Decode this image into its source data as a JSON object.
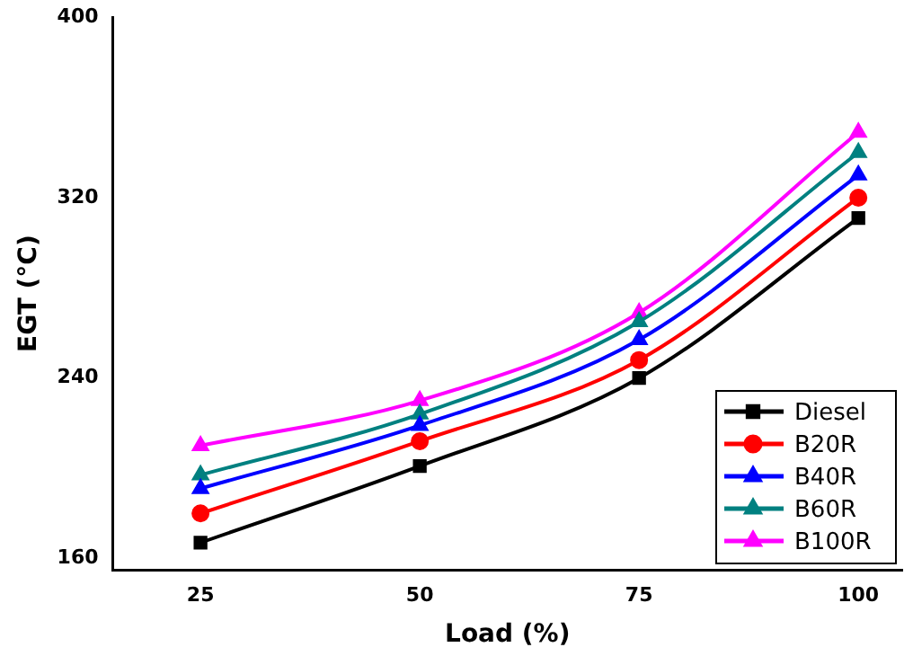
{
  "chart_data": {
    "type": "line",
    "xlabel": "Load (%)",
    "ylabel": "EGT (°C)",
    "x": [
      25,
      50,
      75,
      100
    ],
    "xlim": [
      15,
      105
    ],
    "xticks": [
      25,
      50,
      75,
      100
    ],
    "ylim": [
      155,
      400
    ],
    "yticks": [
      160,
      240,
      320,
      400
    ],
    "grid": false,
    "legend": "bottom right",
    "line_style": "solid",
    "series": [
      {
        "name": "Diesel",
        "color": "#000000",
        "marker": "square",
        "values": [
          167,
          201,
          240,
          311
        ]
      },
      {
        "name": "B20R",
        "color": "#ff0000",
        "marker": "circle",
        "values": [
          180,
          212,
          248,
          320
        ]
      },
      {
        "name": "B40R",
        "color": "#0000ff",
        "marker": "triangle",
        "values": [
          191,
          219,
          257,
          330
        ]
      },
      {
        "name": "B60R",
        "color": "#008080",
        "marker": "triangle",
        "values": [
          197,
          224,
          265,
          340
        ]
      },
      {
        "name": "B100R",
        "color": "#ff00ff",
        "marker": "triangle",
        "values": [
          210,
          230,
          269,
          349
        ]
      }
    ]
  }
}
